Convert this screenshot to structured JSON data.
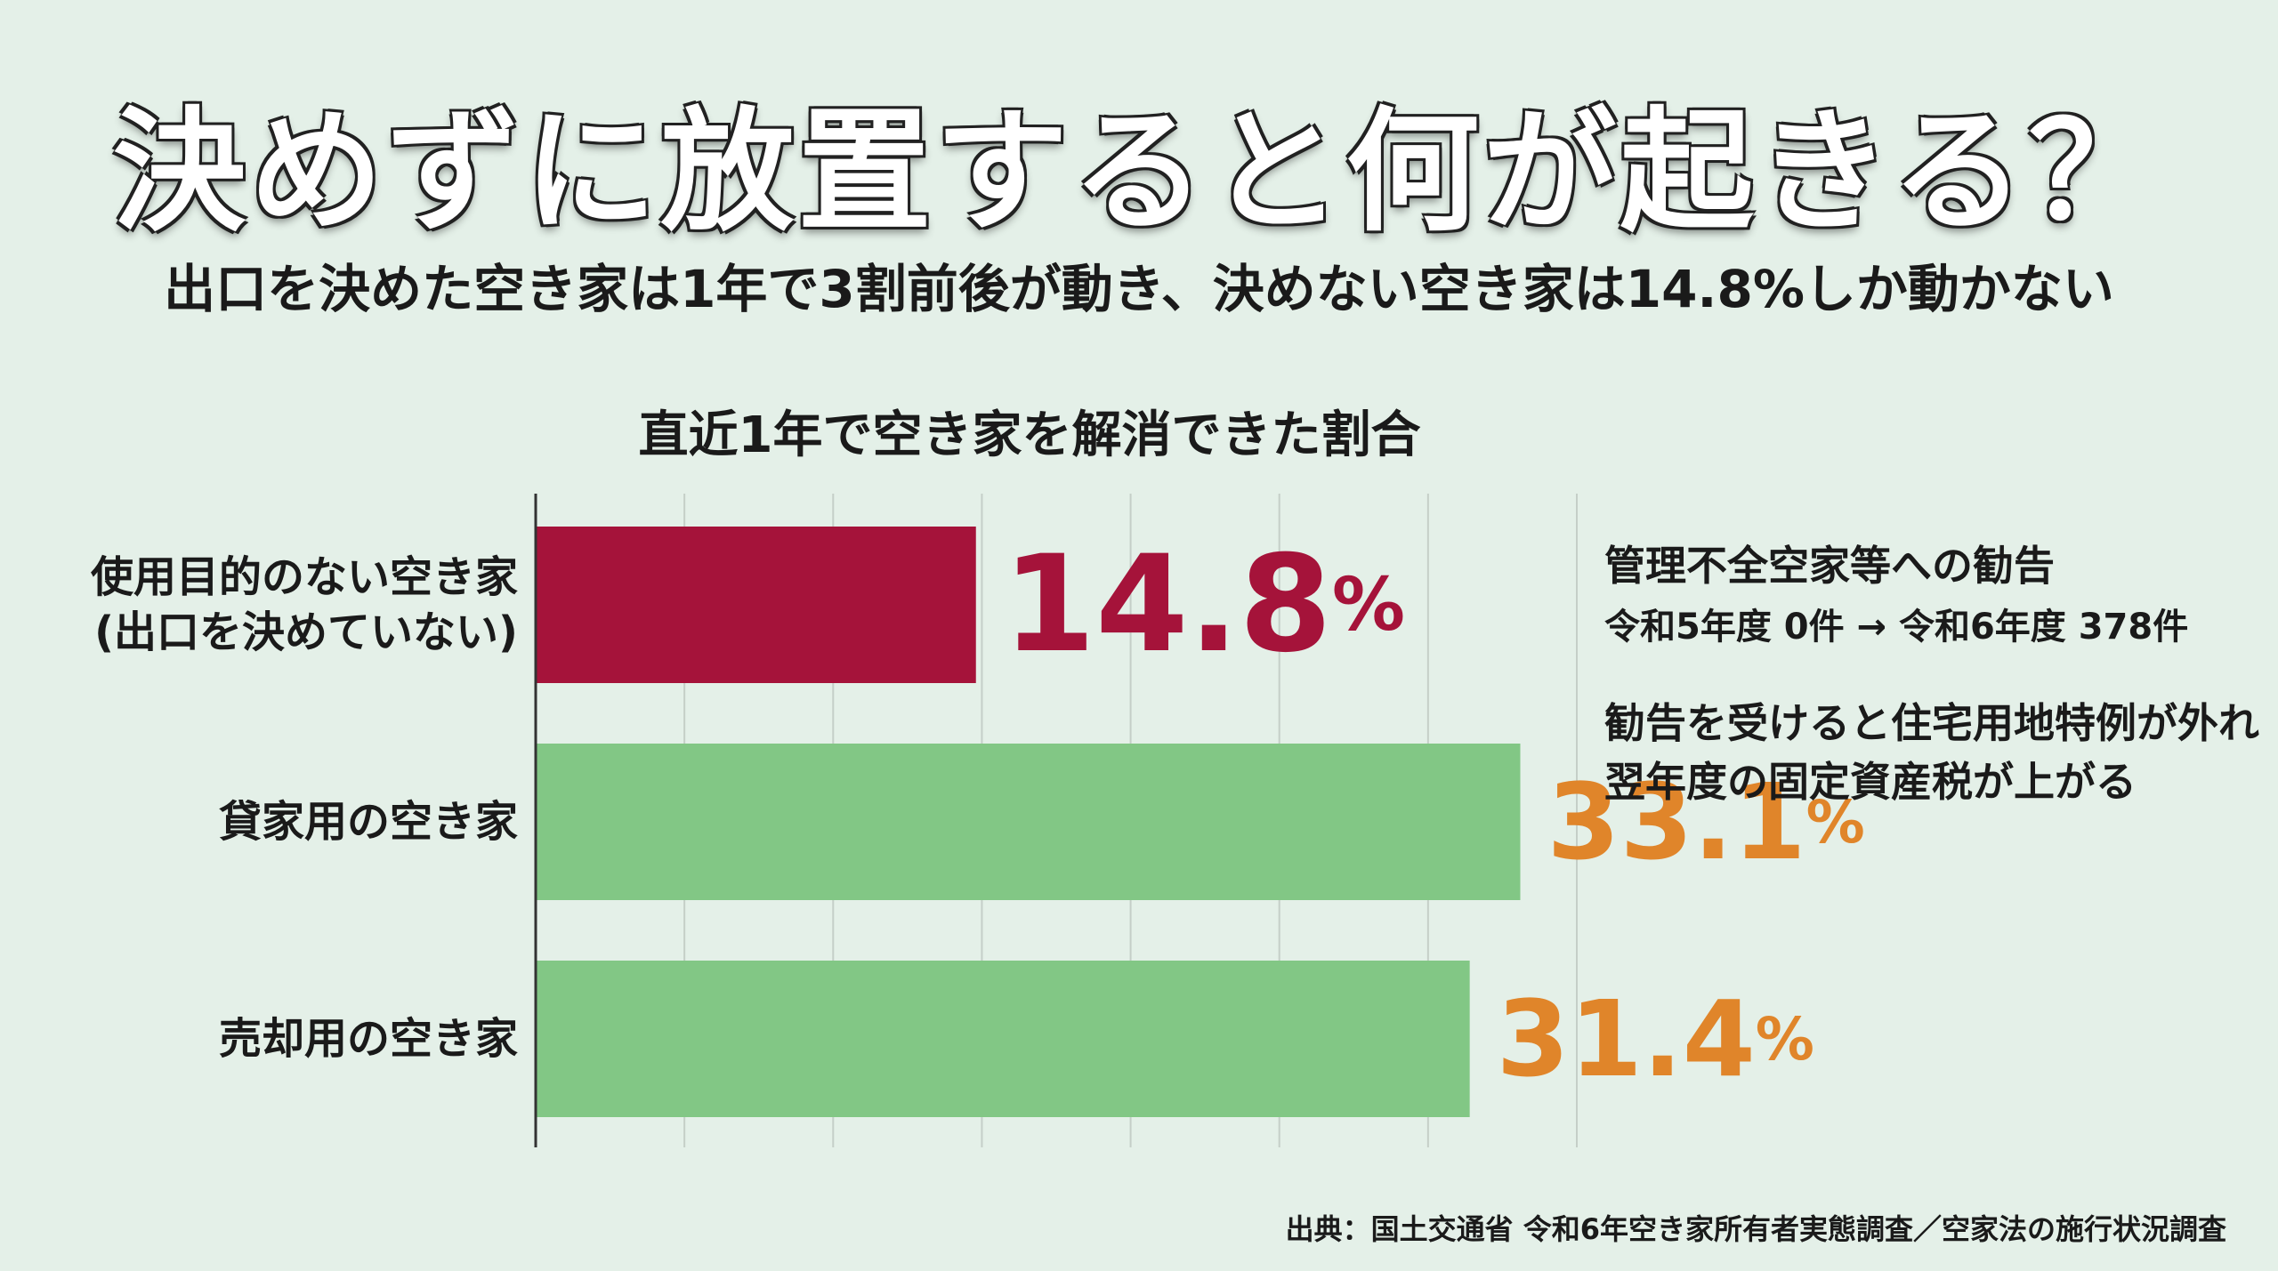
{
  "title": "決めずに放置すると何が起きる？",
  "subtitle": "出口を決めた空き家は1年で3割前後が動き、決めない空き家は14.8%しか動かない",
  "chart_data": {
    "type": "bar",
    "orientation": "horizontal",
    "title": "直近1年で空き家を解消できた割合",
    "categories": [
      [
        "使用目的のない空き家",
        "(出口を決めていない)"
      ],
      [
        "貸家用の空き家"
      ],
      [
        "売却用の空き家"
      ]
    ],
    "values": [
      14.8,
      33.1,
      31.4
    ],
    "value_labels": [
      "14.8",
      "33.1",
      "31.4"
    ],
    "unit": "%",
    "bar_colors": [
      "#a5133a",
      "#82c785",
      "#82c785"
    ],
    "label_colors": [
      "#a5133a",
      "#e0852a",
      "#e0852a"
    ],
    "xlim": [
      0,
      35
    ],
    "gridlines": [
      0,
      5,
      10,
      15,
      20,
      25,
      30,
      35
    ],
    "grid": true,
    "gridline_color": "#c5cfc8"
  },
  "notes": {
    "heading": "管理不全空家等への勧告",
    "detail": "令和5年度 0件 → 令和6年度 378件",
    "body": [
      "勧告を受けると住宅用地特例が外れ",
      "翌年度の固定資産税が上がる"
    ]
  },
  "source": "出典：国土交通省 令和6年空き家所有者実態調査／空家法の施行状況調査"
}
